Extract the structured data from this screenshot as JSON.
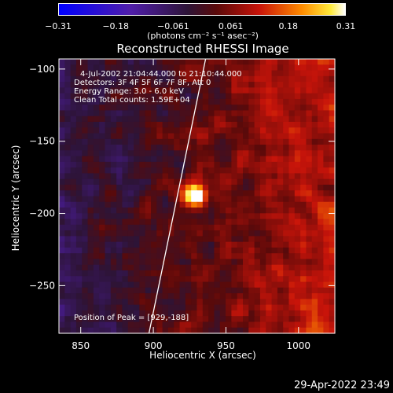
{
  "colorbar": {
    "ticks": [
      "−0.31",
      "−0.18",
      "−0.061",
      "0.061",
      "0.18",
      "0.31"
    ],
    "units": "(photons cm⁻² s⁻¹ asec⁻²)"
  },
  "chart_data": {
    "type": "heatmap",
    "title": "Reconstructed RHESSI Image",
    "xlabel": "Heliocentric X (arcsec)",
    "ylabel": "Heliocentric Y (arcsec)",
    "xlim": [
      835,
      1025
    ],
    "ylim": [
      -283,
      -93
    ],
    "xticks": [
      850,
      900,
      950,
      1000
    ],
    "yticks": [
      -100,
      -150,
      -200,
      -250
    ],
    "xtick_labels": [
      "850",
      "900",
      "950",
      "1000"
    ],
    "ytick_labels": [
      "−100",
      "−150",
      "−200",
      "−250"
    ],
    "zlim": [
      -0.31,
      0.31
    ],
    "peak": {
      "x": 929,
      "y": -188,
      "value": 0.31
    },
    "annotations": [
      "4-Jul-2002 21:04:44.000 to 21:10:44.000",
      "Detectors: 3F 4F 5F 6F 7F 8F, Att 0",
      "Energy Range: 3.0 - 6.0 keV",
      "Clean     Total counts: 1.59E+04"
    ],
    "peak_label": "Position of Peak = [929,-188]",
    "limb_line": [
      [
        897,
        -283
      ],
      [
        936,
        -93
      ]
    ]
  },
  "datestamp": "29-Apr-2022 23:49"
}
